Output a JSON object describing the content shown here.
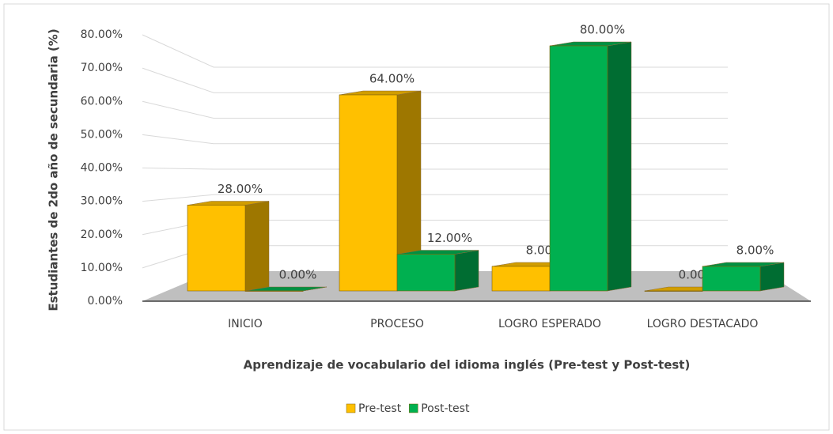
{
  "chart_data": {
    "type": "bar",
    "x_label": "Aprendizaje de vocabulario del idioma inglés (Pre-test y Post-test)",
    "y_label": "Estudiantes de 2do año de secundaria (%)",
    "categories": [
      "INICIO",
      "PROCESO",
      "LOGRO ESPERADO",
      "LOGRO DESTACADO"
    ],
    "series": [
      {
        "name": "Pre-test",
        "color": "#ffc000",
        "values": [
          28,
          64,
          8,
          0
        ],
        "value_labels": [
          "28.00%",
          "64.00%",
          "8.00%",
          "0.00%"
        ]
      },
      {
        "name": "Post-test",
        "color": "#00b050",
        "values": [
          0,
          12,
          80,
          8
        ],
        "value_labels": [
          "0.00%",
          "12.00%",
          "80.00%",
          "8.00%"
        ]
      }
    ],
    "ylim": [
      0,
      80
    ],
    "yticks": [
      {
        "value": 0,
        "label": "0.00%"
      },
      {
        "value": 10,
        "label": "10.00%"
      },
      {
        "value": 20,
        "label": "20.00%"
      },
      {
        "value": 30,
        "label": "30.00%"
      },
      {
        "value": 40,
        "label": "40.00%"
      },
      {
        "value": 50,
        "label": "50.00%"
      },
      {
        "value": 60,
        "label": "60.00%"
      },
      {
        "value": 70,
        "label": "70.00%"
      },
      {
        "value": 80,
        "label": "80.00%"
      }
    ],
    "grid": true,
    "legend": "bottom"
  }
}
